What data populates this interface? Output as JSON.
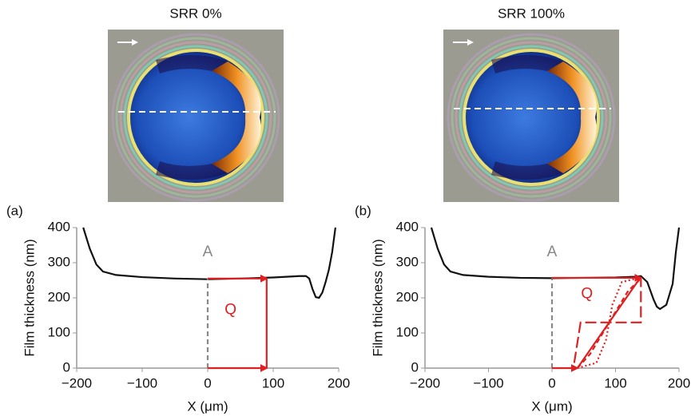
{
  "chart_data": [
    {
      "type": "line",
      "panel_label": "(a)",
      "image_caption": "SRR 0%",
      "y_label": "Film thickness (nm)",
      "x_label": "X (μm)",
      "xlim": [
        -200,
        200
      ],
      "ylim": [
        0,
        400
      ],
      "xticks": [
        {
          "value": -200,
          "label": "−200"
        },
        {
          "value": -100,
          "label": "−100"
        },
        0,
        100,
        200
      ],
      "yticks": [
        0,
        100,
        200,
        300,
        400
      ],
      "series": [
        {
          "color": "#111111",
          "dash": "solid",
          "x": [
            -190,
            -180,
            -170,
            -160,
            -140,
            -100,
            -50,
            0,
            50,
            100,
            140,
            150,
            155,
            160,
            165,
            170,
            175,
            180,
            185,
            190,
            195
          ],
          "values": [
            400,
            340,
            295,
            275,
            265,
            259,
            255,
            253,
            255,
            258,
            262,
            262,
            255,
            225,
            202,
            200,
            215,
            245,
            280,
            330,
            400
          ]
        },
        {
          "color": "#888888",
          "dash": "dash",
          "x": [
            0,
            0
          ],
          "values": [
            0,
            255
          ]
        },
        {
          "color": "#e02020",
          "dash": "solid",
          "arrow": true,
          "x": [
            0,
            90
          ],
          "values": [
            255,
            255
          ]
        },
        {
          "color": "#e02020",
          "dash": "solid",
          "x": [
            90,
            90
          ],
          "values": [
            255,
            0
          ]
        },
        {
          "color": "#e02020",
          "dash": "solid",
          "arrow": true,
          "x": [
            0,
            90
          ],
          "values": [
            0,
            0
          ]
        }
      ],
      "annotations": [
        {
          "text": "A",
          "x": 0,
          "y": 330,
          "color": "#888888"
        },
        {
          "text": "Q",
          "x": 35,
          "y": 165,
          "color": "#e02020"
        }
      ]
    },
    {
      "type": "line",
      "panel_label": "(b)",
      "image_caption": "SRR 100%",
      "y_label": "Film thickness (nm)",
      "x_label": "X (μm)",
      "xlim": [
        -200,
        200
      ],
      "ylim": [
        0,
        400
      ],
      "xticks": [
        {
          "value": -200,
          "label": "−200"
        },
        {
          "value": -100,
          "label": "−100"
        },
        0,
        100,
        200
      ],
      "yticks": [
        0,
        100,
        200,
        300,
        400
      ],
      "series": [
        {
          "color": "#111111",
          "dash": "solid",
          "x": [
            -190,
            -180,
            -170,
            -160,
            -140,
            -100,
            -50,
            0,
            50,
            100,
            130,
            140,
            150,
            160,
            165,
            170,
            180,
            190,
            195,
            200
          ],
          "values": [
            400,
            340,
            295,
            275,
            265,
            260,
            257,
            256,
            257,
            258,
            260,
            262,
            245,
            195,
            175,
            168,
            180,
            240,
            330,
            400
          ]
        },
        {
          "color": "#888888",
          "dash": "dash",
          "x": [
            0,
            0
          ],
          "values": [
            0,
            256
          ]
        },
        {
          "color": "#e02020",
          "dash": "solid",
          "arrow": true,
          "x": [
            0,
            140
          ],
          "values": [
            257,
            257
          ]
        },
        {
          "color": "#e02020",
          "dash": "solid",
          "arrow": true,
          "x": [
            0,
            40
          ],
          "values": [
            0,
            0
          ]
        },
        {
          "color": "#e02020",
          "dash": "solid",
          "x": [
            40,
            140
          ],
          "values": [
            0,
            260
          ]
        },
        {
          "color": "#e02020",
          "dash": "longdash",
          "x": [
            35,
            45,
            140,
            140
          ],
          "values": [
            15,
            130,
            130,
            255
          ]
        },
        {
          "color": "#e02020",
          "dash": "dash",
          "x": [
            40,
            60,
            80,
            90,
            100,
            120,
            140
          ],
          "values": [
            0,
            40,
            100,
            130,
            160,
            220,
            255
          ]
        },
        {
          "color": "#e02020",
          "dash": "dot",
          "x": [
            40,
            70,
            85,
            90,
            95,
            110,
            140
          ],
          "values": [
            0,
            15,
            80,
            130,
            180,
            245,
            258
          ]
        }
      ],
      "annotations": [
        {
          "text": "A",
          "x": 0,
          "y": 330,
          "color": "#888888"
        },
        {
          "text": "Q",
          "x": 55,
          "y": 210,
          "color": "#e02020"
        }
      ]
    }
  ]
}
